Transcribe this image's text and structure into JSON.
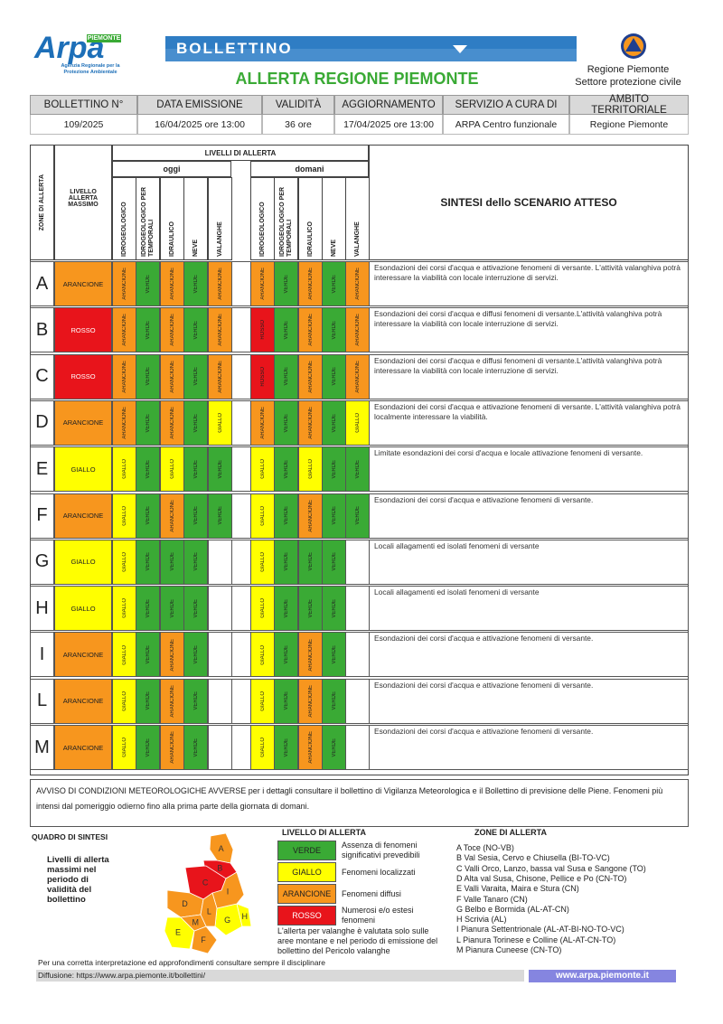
{
  "header": {
    "logo": "Arpa",
    "logo_tag": "PIEMONTE",
    "logo_sub": "Agenzia Regionale per la Protezione Ambientale",
    "banner": "BOLLETTINO",
    "title": "ALLERTA REGIONE PIEMONTE",
    "region": "Regione Piemonte",
    "sector": "Settore protezione civile"
  },
  "info": {
    "headers": [
      "BOLLETTINO N°",
      "DATA EMISSIONE",
      "VALIDITÀ",
      "AGGIORNAMENTO",
      "SERVIZIO A CURA DI",
      "AMBITO TERRITORIALE"
    ],
    "values": [
      "109/2025",
      "16/04/2025 ore 13:00",
      "36 ore",
      "17/04/2025 ore 13:00",
      "ARPA Centro funzionale",
      "Regione Piemonte"
    ]
  },
  "table": {
    "zone_header": "ZONE DI ALLERTA",
    "level_header": "LIVELLO ALLERTA MASSIMO",
    "levels_header": "LIVELLI DI ALLERTA",
    "today": "oggi",
    "tomorrow": "domani",
    "columns": [
      "IDROGEOLOGICO",
      "IDROGEOLOGICO PER TEMPORALI",
      "IDRAULICO",
      "NEVE",
      "VALANGHE"
    ],
    "scenario_header": "SINTESI dello SCENARIO ATTESO",
    "rows": [
      {
        "zone": "A",
        "max": "ARANCIONE",
        "today": [
          "ARANCIONE",
          "VERDE",
          "ARANCIONE",
          "VERDE",
          "ARANCIONE"
        ],
        "tomorrow": [
          "ARANCIONE",
          "VERDE",
          "ARANCIONE",
          "VERDE",
          "ARANCIONE"
        ],
        "text": "Esondazioni dei corsi d'acqua e attivazione fenomeni di versante. L'attività valanghiva potrà interessare la viabilità con locale interruzione di servizi."
      },
      {
        "zone": "B",
        "max": "ROSSO",
        "today": [
          "ARANCIONE",
          "VERDE",
          "ARANCIONE",
          "VERDE",
          "ARANCIONE"
        ],
        "tomorrow": [
          "ROSSO",
          "VERDE",
          "ARANCIONE",
          "VERDE",
          "ARANCIONE"
        ],
        "text": "Esondazioni dei corsi d'acqua e diffusi fenomeni di versante.L'attività valanghiva potrà interessare la viabilità con locale interruzione di servizi."
      },
      {
        "zone": "C",
        "max": "ROSSO",
        "today": [
          "ARANCIONE",
          "VERDE",
          "ARANCIONE",
          "VERDE",
          "ARANCIONE"
        ],
        "tomorrow": [
          "ROSSO",
          "VERDE",
          "ARANCIONE",
          "VERDE",
          "ARANCIONE"
        ],
        "text": "Esondazioni dei corsi d'acqua e diffusi fenomeni di versante.L'attività valanghiva potrà interessare la viabilità con locale interruzione di servizi."
      },
      {
        "zone": "D",
        "max": "ARANCIONE",
        "today": [
          "ARANCIONE",
          "VERDE",
          "ARANCIONE",
          "VERDE",
          "GIALLO"
        ],
        "tomorrow": [
          "ARANCIONE",
          "VERDE",
          "ARANCIONE",
          "VERDE",
          "GIALLO"
        ],
        "text": "Esondazioni dei corsi d'acqua e attivazione fenomeni di versante. L'attività valanghiva potrà localmente interessare la viabilità."
      },
      {
        "zone": "E",
        "max": "GIALLO",
        "today": [
          "GIALLO",
          "VERDE",
          "GIALLO",
          "VERDE",
          "VERDE"
        ],
        "tomorrow": [
          "GIALLO",
          "VERDE",
          "GIALLO",
          "VERDE",
          "VERDE"
        ],
        "text": "Limitate esondazioni dei corsi d'acqua e locale attivazione fenomeni di versante."
      },
      {
        "zone": "F",
        "max": "ARANCIONE",
        "today": [
          "GIALLO",
          "VERDE",
          "ARANCIONE",
          "VERDE",
          "VERDE"
        ],
        "tomorrow": [
          "GIALLO",
          "VERDE",
          "ARANCIONE",
          "VERDE",
          "VERDE"
        ],
        "text": "Esondazioni dei corsi d'acqua e attivazione fenomeni di versante."
      },
      {
        "zone": "G",
        "max": "GIALLO",
        "today": [
          "GIALLO",
          "VERDE",
          "VERDE",
          "VERDE",
          null
        ],
        "tomorrow": [
          "GIALLO",
          "VERDE",
          "VERDE",
          "VERDE",
          null
        ],
        "text": "Locali allagamenti ed isolati fenomeni di versante"
      },
      {
        "zone": "H",
        "max": "GIALLO",
        "today": [
          "GIALLO",
          "VERDE",
          "VERDE",
          "VERDE",
          null
        ],
        "tomorrow": [
          "GIALLO",
          "VERDE",
          "VERDE",
          "VERDE",
          null
        ],
        "text": "Locali allagamenti ed isolati fenomeni di versante"
      },
      {
        "zone": "I",
        "max": "ARANCIONE",
        "today": [
          "GIALLO",
          "VERDE",
          "ARANCIONE",
          "VERDE",
          null
        ],
        "tomorrow": [
          "GIALLO",
          "VERDE",
          "ARANCIONE",
          "VERDE",
          null
        ],
        "text": "Esondazioni dei corsi d'acqua e attivazione fenomeni di versante."
      },
      {
        "zone": "L",
        "max": "ARANCIONE",
        "today": [
          "GIALLO",
          "VERDE",
          "ARANCIONE",
          "VERDE",
          null
        ],
        "tomorrow": [
          "GIALLO",
          "VERDE",
          "ARANCIONE",
          "VERDE",
          null
        ],
        "text": "Esondazioni dei corsi d'acqua e attivazione fenomeni di versante."
      },
      {
        "zone": "M",
        "max": "ARANCIONE",
        "today": [
          "GIALLO",
          "VERDE",
          "ARANCIONE",
          "VERDE",
          null
        ],
        "tomorrow": [
          "GIALLO",
          "VERDE",
          "ARANCIONE",
          "VERDE",
          null
        ],
        "text": "Esondazioni dei corsi d'acqua e attivazione fenomeni di versante."
      }
    ]
  },
  "notice": "AVVISO DI CONDIZIONI METEOROLOGICHE AVVERSE per i dettagli consultare il bollettino di Vigilanza Meteorologica e il Bollettino di previsione delle Piene. Fenomeni più intensi dal pomeriggio odierno fino alla prima parte della giornata di domani.",
  "summary": {
    "title": "QUADRO DI SINTESI",
    "caption": "Livelli di allerta massimi nel periodo di validità del bollettino"
  },
  "legend": {
    "title": "LIVELLO DI ALLERTA",
    "items": [
      {
        "label": "VERDE",
        "description": "Assenza di fenomeni significativi prevedibili",
        "color": "#3aaa35"
      },
      {
        "label": "GIALLO",
        "description": "Fenomeni localizzati",
        "color": "#ffff00"
      },
      {
        "label": "ARANCIONE",
        "description": "Fenomeni diffusi",
        "color": "#f7961e"
      },
      {
        "label": "ROSSO",
        "description": "Numerosi e/o estesi fenomeni",
        "color": "#e8141b"
      }
    ],
    "note": "L'allerta per valanghe è valutata solo sulle aree montane e nel periodo di emissione del bollettino del Pericolo valanghe"
  },
  "zones": {
    "title": "ZONE DI ALLERTA",
    "items": [
      "A Toce (NO-VB)",
      "B Val Sesia, Cervo e Chiusella (BI-TO-VC)",
      "C Valli Orco, Lanzo, bassa val Susa e Sangone (TO)",
      "D Alta val Susa, Chisone, Pellice e Po (CN-TO)",
      "E Valli Varaita, Maira e Stura (CN)",
      "F Valle Tanaro (CN)",
      "G Belbo e Bormida (AL-AT-CN)",
      "H Scrivia (AL)",
      "I Pianura Settentrionale (AL-AT-BI-NO-TO-VC)",
      "L Pianura Torinese e Colline (AL-AT-CN-TO)",
      "M Pianura Cuneese (CN-TO)"
    ]
  },
  "footer": {
    "note": "Per una corretta interpretazione ed approfondimenti consultare sempre il disciplinare",
    "diffusion": "Diffusione: https://www.arpa.piemonte.it/bollettini/",
    "website": "www.arpa.piemonte.it"
  }
}
